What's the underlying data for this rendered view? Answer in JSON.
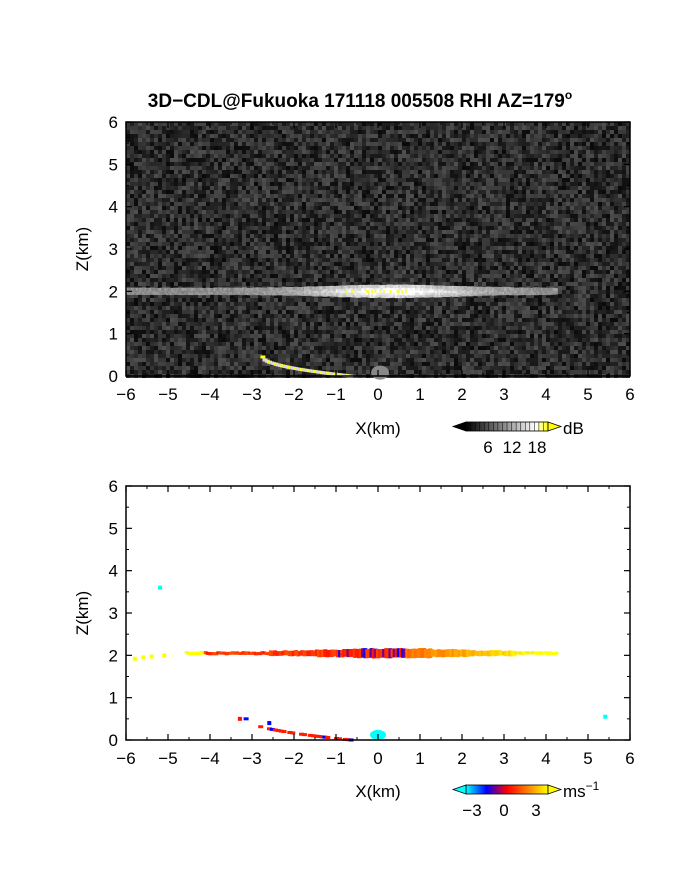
{
  "title": {
    "main": "3D−CDL@Fukuoka 171118 005508 RHI AZ=179",
    "sup": "o"
  },
  "chart_data": [
    {
      "type": "heatmap",
      "panel": "backscatter",
      "xlabel": "X(km)",
      "ylabel": "Z(km)",
      "xlim": [
        -6,
        6
      ],
      "ylim": [
        0,
        6
      ],
      "xticks": [
        "−6",
        "−5",
        "−4",
        "−3",
        "−2",
        "−1",
        "0",
        "1",
        "2",
        "3",
        "4",
        "5",
        "6"
      ],
      "yticks": [
        "0",
        "1",
        "2",
        "3",
        "4",
        "5",
        "6"
      ],
      "colorbar": {
        "unit": "dB",
        "ticks": [
          "6",
          "12",
          "18"
        ],
        "colors": [
          "#000000",
          "#ffffff",
          "#ffff00"
        ]
      },
      "features": [
        {
          "type": "cloud_layer",
          "z_km": 2.0,
          "x_from": -6.0,
          "x_to": 4.2,
          "peak_dB": 18
        },
        {
          "type": "ground_clutter",
          "x_from": -2.8,
          "x_to": -0.7,
          "z_from": 0.45,
          "z_to": 0.0
        }
      ]
    },
    {
      "type": "heatmap",
      "panel": "doppler_velocity",
      "xlabel": "X(km)",
      "ylabel": "Z(km)",
      "xlim": [
        -6,
        6
      ],
      "ylim": [
        0,
        6
      ],
      "xticks": [
        "−6",
        "−5",
        "−4",
        "−3",
        "−2",
        "−1",
        "0",
        "1",
        "2",
        "3",
        "4",
        "5",
        "6"
      ],
      "yticks": [
        "0",
        "1",
        "2",
        "3",
        "4",
        "5",
        "6"
      ],
      "colorbar": {
        "unit": "ms",
        "unit_sup": "−1",
        "ticks": [
          "−3",
          "0",
          "3"
        ],
        "colors": [
          "#00ffff",
          "#0000ff",
          "#ff0000",
          "#ff8000",
          "#ffff00"
        ]
      },
      "points": [
        {
          "x": -5.2,
          "z": 3.6,
          "v": -4
        },
        {
          "x": 5.4,
          "z": 0.55,
          "v": -4
        },
        {
          "x": -5.8,
          "z": 1.92,
          "v": 3
        },
        {
          "x": -5.6,
          "z": 1.95,
          "v": 3
        },
        {
          "x": -5.4,
          "z": 1.97,
          "v": 3
        },
        {
          "x": -5.1,
          "z": 2.0,
          "v": 3
        },
        {
          "x": -3.3,
          "z": 0.5,
          "v": 0.2
        },
        {
          "x": -2.6,
          "z": 0.4,
          "v": -1
        },
        {
          "x": 0.0,
          "z": 0.12,
          "v": -4
        }
      ],
      "layer": {
        "z_km": 2.05,
        "x_from": -4.6,
        "x_to": 4.2,
        "v_start": 3,
        "v_mid_from": -1.0,
        "v_mid_to": 0.6,
        "v_end": 3
      },
      "clutter": {
        "x_from": -3.2,
        "x_to": -0.7,
        "z_from": 0.5,
        "z_to": 0.0,
        "v": 0.3
      }
    }
  ]
}
